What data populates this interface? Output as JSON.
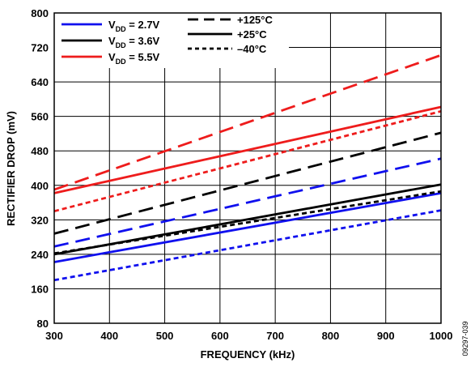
{
  "chart_data": {
    "type": "line",
    "title": "",
    "xlabel": "FREQUENCY (kHz)",
    "ylabel": "RECTIFIER DROP (mV)",
    "xlim": [
      300,
      1000
    ],
    "ylim": [
      80,
      800
    ],
    "x_ticks": [
      "300",
      "400",
      "500",
      "600",
      "700",
      "800",
      "900",
      "1000"
    ],
    "y_ticks": [
      "80",
      "160",
      "240",
      "320",
      "400",
      "480",
      "560",
      "640",
      "720",
      "800"
    ],
    "x_tick_values": [
      300,
      400,
      500,
      600,
      700,
      800,
      900,
      1000
    ],
    "y_tick_values": [
      80,
      160,
      240,
      320,
      400,
      480,
      560,
      640,
      720,
      800
    ],
    "grid": true,
    "legend_position": "top-left",
    "legend_supply": [
      {
        "prefix": "V",
        "sub": "DD",
        "suffix": " = 2.7V",
        "color": "#1010ee"
      },
      {
        "prefix": "V",
        "sub": "DD",
        "suffix": " = 3.6V",
        "color": "#000000"
      },
      {
        "prefix": "V",
        "sub": "DD",
        "suffix": " = 5.5V",
        "color": "#ee1c1c"
      }
    ],
    "legend_temperature": [
      {
        "label": "+125°C",
        "dash": "long-dash"
      },
      {
        "label": "+25°C",
        "dash": "solid"
      },
      {
        "label": "–40°C",
        "dash": "short-dash"
      }
    ],
    "series": [
      {
        "supply": "VDD = 2.7V",
        "temp": "+125°C",
        "color": "#1010ee",
        "dash": "long-dash",
        "x": [
          300,
          1000
        ],
        "y": [
          258,
          462
        ]
      },
      {
        "supply": "VDD = 2.7V",
        "temp": "+25°C",
        "color": "#1010ee",
        "dash": "solid",
        "x": [
          300,
          1000
        ],
        "y": [
          222,
          382
        ]
      },
      {
        "supply": "VDD = 2.7V",
        "temp": "–40°C",
        "color": "#1010ee",
        "dash": "short-dash",
        "x": [
          300,
          1000
        ],
        "y": [
          180,
          342
        ]
      },
      {
        "supply": "VDD = 3.6V",
        "temp": "+125°C",
        "color": "#000000",
        "dash": "long-dash",
        "x": [
          300,
          1000
        ],
        "y": [
          288,
          522
        ]
      },
      {
        "supply": "VDD = 3.6V",
        "temp": "+25°C",
        "color": "#000000",
        "dash": "solid",
        "x": [
          300,
          1000
        ],
        "y": [
          240,
          402
        ]
      },
      {
        "supply": "VDD = 3.6V",
        "temp": "–40°C",
        "color": "#000000",
        "dash": "short-dash",
        "x": [
          300,
          1000
        ],
        "y": [
          242,
          386
        ]
      },
      {
        "supply": "VDD = 5.5V",
        "temp": "+125°C",
        "color": "#ee1c1c",
        "dash": "long-dash",
        "x": [
          300,
          1000
        ],
        "y": [
          390,
          702
        ]
      },
      {
        "supply": "VDD = 5.5V",
        "temp": "+25°C",
        "color": "#ee1c1c",
        "dash": "solid",
        "x": [
          300,
          1000
        ],
        "y": [
          382,
          582
        ]
      },
      {
        "supply": "VDD = 5.5V",
        "temp": "–40°C",
        "color": "#ee1c1c",
        "dash": "short-dash",
        "x": [
          300,
          1000
        ],
        "y": [
          340,
          572
        ]
      }
    ]
  },
  "figure_id": "09297-039"
}
